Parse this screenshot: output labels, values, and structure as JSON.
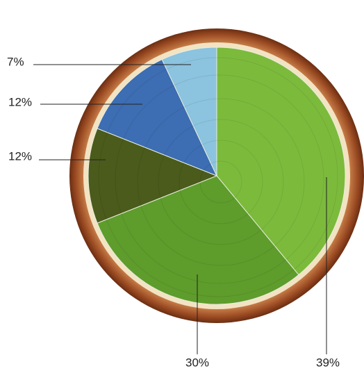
{
  "chart_data": {
    "type": "pie",
    "values": [
      39,
      30,
      12,
      12,
      7
    ],
    "value_labels": [
      "39%",
      "30%",
      "12%",
      "12%",
      "7%"
    ],
    "colors": [
      "#7cba3c",
      "#5e9c2c",
      "#4a5b1c",
      "#3d6db2",
      "#8cc3de"
    ]
  }
}
